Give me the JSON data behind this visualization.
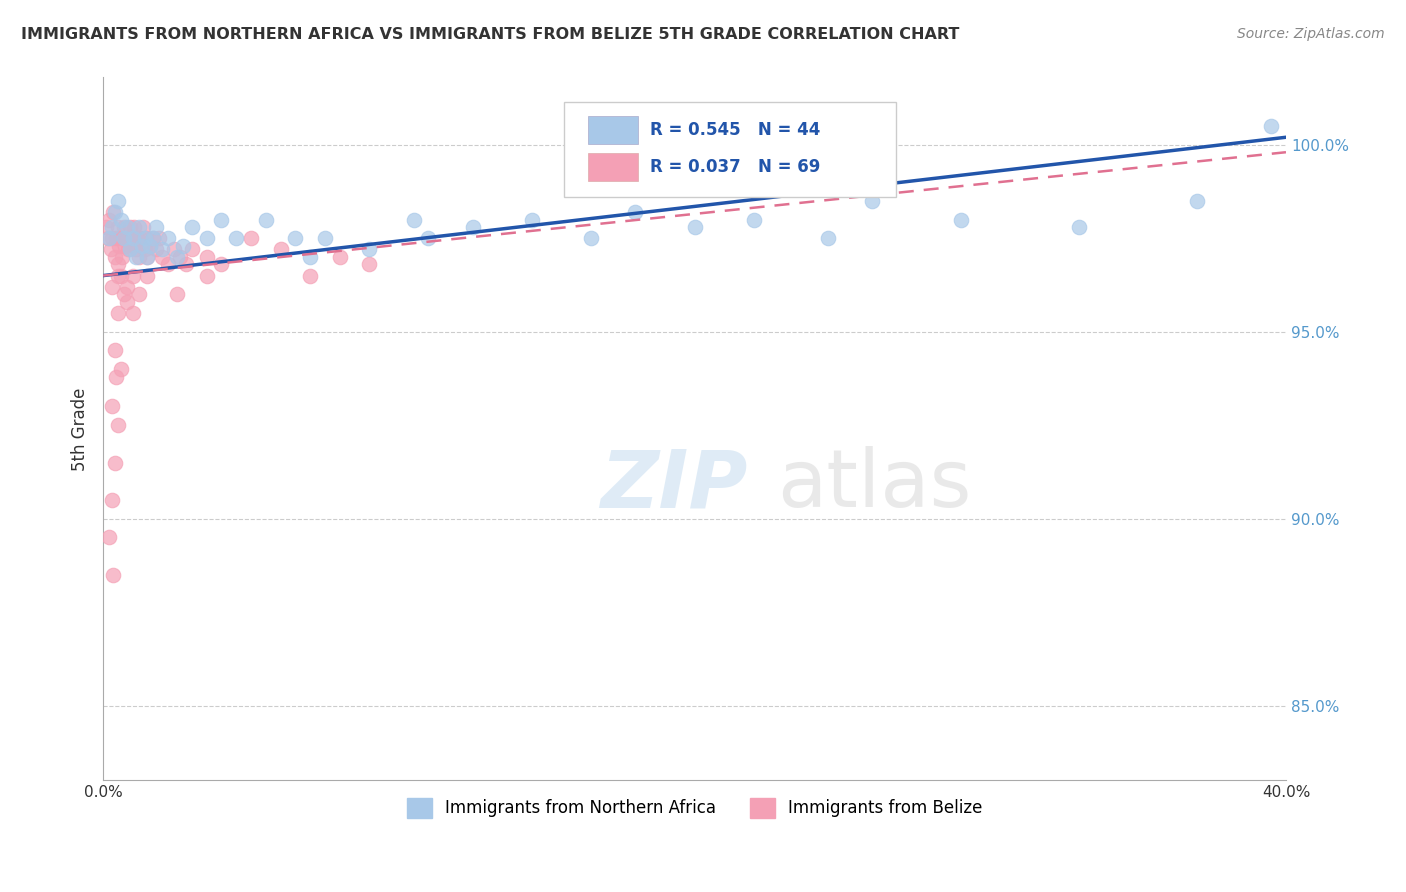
{
  "title": "IMMIGRANTS FROM NORTHERN AFRICA VS IMMIGRANTS FROM BELIZE 5TH GRADE CORRELATION CHART",
  "source": "Source: ZipAtlas.com",
  "ylabel": "5th Grade",
  "xlim": [
    0.0,
    40.0
  ],
  "ylim": [
    83.0,
    101.8
  ],
  "yticks": [
    85.0,
    90.0,
    95.0,
    100.0
  ],
  "ytick_labels": [
    "85.0%",
    "90.0%",
    "95.0%",
    "100.0%"
  ],
  "xticks": [
    0.0,
    5.0,
    10.0,
    15.0,
    20.0,
    25.0,
    30.0,
    35.0,
    40.0
  ],
  "r_blue": 0.545,
  "n_blue": 44,
  "r_pink": 0.037,
  "n_pink": 69,
  "blue_color": "#A8C8E8",
  "pink_color": "#F4A0B5",
  "blue_line_color": "#2255AA",
  "pink_line_color": "#E07090",
  "legend_label_blue": "Immigrants from Northern Africa",
  "legend_label_pink": "Immigrants from Belize",
  "blue_scatter_x": [
    0.2,
    0.3,
    0.4,
    0.5,
    0.6,
    0.7,
    0.8,
    0.9,
    1.0,
    1.1,
    1.2,
    1.3,
    1.4,
    1.5,
    1.6,
    1.7,
    1.8,
    2.0,
    2.2,
    2.5,
    2.7,
    3.0,
    3.5,
    4.0,
    4.5,
    5.5,
    6.5,
    7.0,
    7.5,
    9.0,
    10.5,
    11.0,
    12.5,
    14.5,
    16.5,
    18.0,
    20.0,
    22.0,
    24.5,
    26.0,
    29.0,
    33.0,
    37.0,
    39.5
  ],
  "blue_scatter_y": [
    97.5,
    97.8,
    98.2,
    98.5,
    98.0,
    97.5,
    97.8,
    97.2,
    97.5,
    97.0,
    97.8,
    97.3,
    97.5,
    97.0,
    97.3,
    97.5,
    97.8,
    97.2,
    97.5,
    97.0,
    97.3,
    97.8,
    97.5,
    98.0,
    97.5,
    98.0,
    97.5,
    97.0,
    97.5,
    97.2,
    98.0,
    97.5,
    97.8,
    98.0,
    97.5,
    98.2,
    97.8,
    98.0,
    97.5,
    98.5,
    98.0,
    97.8,
    98.5,
    100.5
  ],
  "pink_scatter_x": [
    0.1,
    0.15,
    0.2,
    0.25,
    0.3,
    0.35,
    0.4,
    0.45,
    0.5,
    0.55,
    0.6,
    0.65,
    0.7,
    0.75,
    0.8,
    0.85,
    0.9,
    0.95,
    1.0,
    1.05,
    1.1,
    1.15,
    1.2,
    1.25,
    1.3,
    1.35,
    1.4,
    1.45,
    1.5,
    1.6,
    1.7,
    1.8,
    1.9,
    2.0,
    2.2,
    2.4,
    2.6,
    2.8,
    3.0,
    3.5,
    4.0,
    5.0,
    6.0,
    7.0,
    8.0,
    9.0,
    0.3,
    0.5,
    0.7,
    0.5,
    0.6,
    0.8,
    1.0,
    1.2,
    0.4,
    0.6,
    0.3,
    0.5,
    0.4,
    0.3,
    0.2,
    0.35,
    0.45,
    1.5,
    2.5,
    3.5,
    0.5,
    0.8,
    1.0
  ],
  "pink_scatter_y": [
    97.8,
    97.5,
    98.0,
    97.2,
    97.5,
    98.2,
    97.0,
    97.5,
    97.8,
    97.3,
    97.5,
    97.0,
    97.8,
    97.3,
    97.5,
    97.2,
    97.8,
    97.5,
    97.3,
    97.8,
    97.2,
    97.5,
    97.0,
    97.5,
    97.3,
    97.8,
    97.2,
    97.5,
    97.0,
    97.3,
    97.5,
    97.2,
    97.5,
    97.0,
    96.8,
    97.2,
    97.0,
    96.8,
    97.2,
    97.0,
    96.8,
    97.5,
    97.2,
    96.5,
    97.0,
    96.8,
    96.2,
    96.5,
    96.0,
    96.8,
    96.5,
    96.2,
    96.5,
    96.0,
    94.5,
    94.0,
    93.0,
    92.5,
    91.5,
    90.5,
    89.5,
    88.5,
    93.8,
    96.5,
    96.0,
    96.5,
    95.5,
    95.8,
    95.5
  ],
  "blue_trend_x0": 0.0,
  "blue_trend_y0": 96.5,
  "blue_trend_x1": 40.0,
  "blue_trend_y1": 100.2,
  "pink_trend_x0": 0.0,
  "pink_trend_y0": 96.5,
  "pink_trend_x1": 40.0,
  "pink_trend_y1": 99.8
}
